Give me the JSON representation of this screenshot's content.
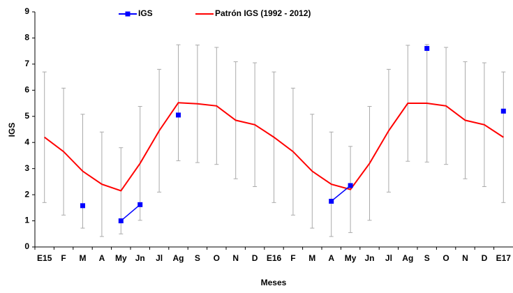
{
  "chart_data": {
    "type": "line",
    "title": null,
    "x_label": "Meses",
    "y_label": "IGS",
    "categories": [
      "E15",
      "F",
      "M",
      "A",
      "My",
      "Jn",
      "Jl",
      "Ag",
      "S",
      "O",
      "N",
      "D",
      "E16",
      "F",
      "M",
      "A",
      "My",
      "Jn",
      "Jl",
      "Ag",
      "S",
      "O",
      "N",
      "D",
      "E17"
    ],
    "ylim": [
      0,
      9
    ],
    "yticks": [
      0,
      1,
      2,
      3,
      4,
      5,
      6,
      7,
      8,
      9
    ],
    "grid": false,
    "legend": "top",
    "series": [
      {
        "name": "IGS",
        "color": "#0000ff",
        "marker": "square",
        "values": [
          null,
          null,
          1.58,
          null,
          1.0,
          1.62,
          null,
          5.05,
          null,
          null,
          null,
          null,
          null,
          null,
          null,
          1.75,
          2.35,
          null,
          null,
          null,
          7.6,
          null,
          null,
          null,
          5.2
        ]
      },
      {
        "name": "Patrón IGS (1992 - 2012)",
        "color": "#ff0000",
        "error_color": "#aaaaaa",
        "values": [
          4.2,
          3.65,
          2.9,
          2.4,
          2.15,
          3.2,
          4.45,
          5.52,
          5.48,
          5.4,
          4.85,
          4.68,
          4.2,
          3.65,
          2.9,
          2.4,
          2.2,
          3.2,
          4.45,
          5.5,
          5.5,
          5.4,
          4.85,
          4.68,
          4.2
        ],
        "error": [
          2.5,
          2.43,
          2.18,
          2.0,
          1.65,
          2.18,
          2.35,
          2.22,
          2.25,
          2.24,
          2.24,
          2.37,
          2.5,
          2.43,
          2.18,
          2.0,
          1.65,
          2.18,
          2.35,
          2.22,
          2.25,
          2.24,
          2.24,
          2.37,
          2.5
        ]
      }
    ]
  }
}
